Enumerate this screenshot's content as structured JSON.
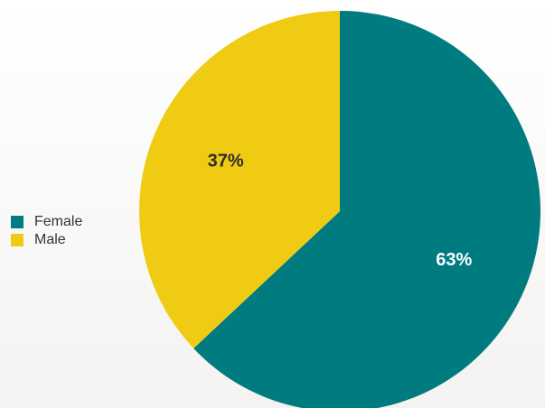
{
  "chart_data": {
    "type": "pie",
    "title": "",
    "legend_position": "left",
    "slices": [
      {
        "name": "Female",
        "value": 63,
        "label": "63%",
        "color": "#007b80",
        "label_color": "#ffffff"
      },
      {
        "name": "Male",
        "value": 37,
        "label": "37%",
        "color": "#f0cb13",
        "label_color": "#2b2b2b"
      }
    ]
  },
  "legend": {
    "items": [
      {
        "label": "Female",
        "color": "#007b80"
      },
      {
        "label": "Male",
        "color": "#f0cb13"
      }
    ]
  }
}
